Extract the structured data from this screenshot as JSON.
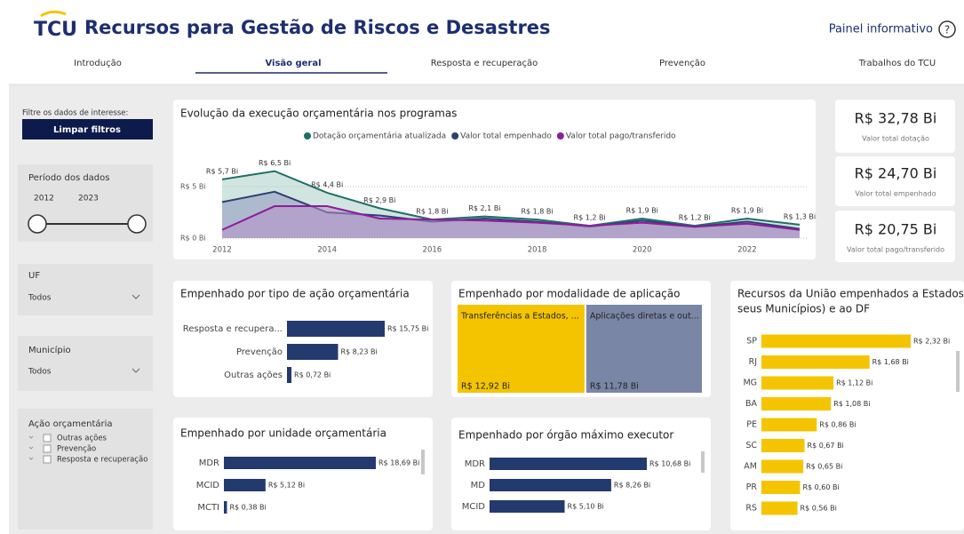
{
  "header": {
    "logo": "TCU",
    "title": "Recursos para Gestão de Riscos e Desastres",
    "info_link": "Painel informativo",
    "help": "?"
  },
  "tabs": {
    "items": [
      "Introdução",
      "Visão geral",
      "Resposta e recuperação",
      "Prevenção",
      "Trabalhos do TCU"
    ],
    "active": 1
  },
  "sidebar": {
    "filter_label": "Filtre os dados de interesse:",
    "clear_button": "Limpar filtros",
    "period": {
      "title": "Período dos dados",
      "start": "2012",
      "end": "2023"
    },
    "uf": {
      "title": "UF",
      "value": "Todos"
    },
    "municipio": {
      "title": "Município",
      "value": "Todos"
    },
    "acao": {
      "title": "Ação orçamentária",
      "options": [
        "Outras ações",
        "Prevenção",
        "Resposta e recuperação"
      ]
    }
  },
  "kpis": [
    {
      "value": "R$ 32,78 Bi",
      "label": "Valor total dotação"
    },
    {
      "value": "R$ 24,70 Bi",
      "label": "Valor total empenhado"
    },
    {
      "value": "R$ 20,75 Bi",
      "label": "Valor total pago/transferido"
    }
  ],
  "line_chart": {
    "type": "area",
    "title": "Evolução da execução orçamentária nos programas",
    "x": [
      2012,
      2013,
      2014,
      2015,
      2016,
      2017,
      2018,
      2019,
      2020,
      2021,
      2022,
      2023
    ],
    "xlim": [
      2012,
      2023
    ],
    "xticks": [
      2012,
      2014,
      2016,
      2018,
      2020,
      2022
    ],
    "ylim": [
      0,
      7.5
    ],
    "yticks": [
      {
        "value": 0,
        "label": "R$ 0 Bi"
      },
      {
        "value": 5,
        "label": "R$ 5 Bi"
      }
    ],
    "series": [
      {
        "name": "Dotação orçamentária atualizada",
        "color": "#1f6e64",
        "fill": "#a9cfc7",
        "values": [
          5.7,
          6.5,
          4.4,
          2.9,
          1.8,
          2.1,
          1.8,
          1.2,
          1.9,
          1.2,
          1.9,
          1.3
        ],
        "value_labels": [
          "R$ 5,7 Bi",
          "R$ 6,5 Bi",
          "R$ 4,4 Bi",
          "R$ 2,9 Bi",
          "R$ 1,8 Bi",
          "R$ 2,1 Bi",
          "R$ 1,8 Bi",
          "R$ 1,2 Bi",
          "R$ 1,9 Bi",
          "R$ 1,2 Bi",
          "R$ 1,9 Bi",
          "R$ 1,3 Bi"
        ]
      },
      {
        "name": "Valor total empenhado",
        "color": "#2e3f73",
        "fill": "#8f97bd",
        "values": [
          3.5,
          4.5,
          2.5,
          2.2,
          1.6,
          1.9,
          1.6,
          1.1,
          1.7,
          1.1,
          1.6,
          0.9
        ]
      },
      {
        "name": "Valor total pago/transferido",
        "color": "#8e1c9b",
        "fill": "#b48fc9",
        "values": [
          0.8,
          3.1,
          3.1,
          1.9,
          1.8,
          1.7,
          1.5,
          1.2,
          1.5,
          1.1,
          1.4,
          0.8
        ]
      }
    ]
  },
  "tipo_acao": {
    "type": "hbar",
    "title": "Empenhado por tipo de ação orçamentária",
    "color": "#233a6e",
    "categories": [
      "Resposta e recupera...",
      "Prevenção",
      "Outras ações"
    ],
    "values": [
      15.75,
      8.23,
      0.72
    ],
    "value_labels": [
      "R$ 15,75 Bi",
      "R$ 8,23 Bi",
      "R$ 0,72 Bi"
    ]
  },
  "modalidade": {
    "type": "treemap",
    "title": "Empenhado por modalidade de aplicação",
    "categories": [
      "Transferências a Estados, ...",
      "Aplicações diretas e out..."
    ],
    "values": [
      12.92,
      11.78
    ],
    "value_labels": [
      "R$ 12,92 Bi",
      "R$ 11,78 Bi"
    ],
    "colors": [
      "#f5c400",
      "#7a86a6"
    ]
  },
  "unidade": {
    "type": "hbar",
    "title": "Empenhado por unidade orçamentária",
    "color": "#233a6e",
    "categories": [
      "MDR",
      "MCID",
      "MCTI"
    ],
    "values": [
      18.69,
      5.12,
      0.38
    ],
    "value_labels": [
      "R$ 18,69 Bi",
      "R$ 5,12 Bi",
      "R$ 0,38 Bi"
    ]
  },
  "orgao": {
    "type": "hbar",
    "title": "Empenhado por órgão máximo executor",
    "color": "#233a6e",
    "categories": [
      "MDR",
      "MD",
      "MCID"
    ],
    "values": [
      10.68,
      8.26,
      5.1
    ],
    "value_labels": [
      "R$ 10,68 Bi",
      "R$ 8,26 Bi",
      "R$ 5,10 Bi"
    ]
  },
  "estados": {
    "type": "hbar",
    "title": [
      "Recursos da União empenhados a Estados (e a",
      "seus Municípios) e ao DF"
    ],
    "color": "#f5c400",
    "categories": [
      "SP",
      "RJ",
      "MG",
      "BA",
      "PE",
      "SC",
      "AM",
      "PR",
      "RS"
    ],
    "values": [
      2.32,
      1.68,
      1.12,
      1.08,
      0.86,
      0.67,
      0.65,
      0.6,
      0.56
    ],
    "value_labels": [
      "R$ 2,32 Bi",
      "R$ 1,68 Bi",
      "R$ 1,12 Bi",
      "R$ 1,08 Bi",
      "R$ 0,86 Bi",
      "R$ 0,67 Bi",
      "R$ 0,65 Bi",
      "R$ 0,60 Bi",
      "R$ 0,56 Bi"
    ]
  }
}
